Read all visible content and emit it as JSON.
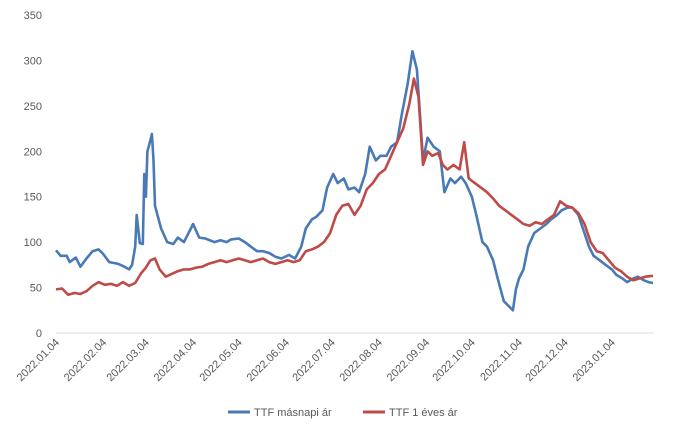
{
  "chart_data": {
    "type": "line",
    "title": "",
    "xlabel": "",
    "ylabel": "",
    "ylim": [
      0,
      350
    ],
    "yticks": [
      0,
      50,
      100,
      150,
      200,
      250,
      300,
      350
    ],
    "x_start": "2022-01-04",
    "x_end": "2023-01-31",
    "xtick_labels": [
      "2022.01.04",
      "2022.02.04",
      "2022.03.04",
      "2022.04.04",
      "2022.05.04",
      "2022.06.04",
      "2022.07.04",
      "2022.08.04",
      "2022.09.04",
      "2022.10.04",
      "2022.11.04",
      "2022.12.04",
      "2023.01.04"
    ],
    "grid": false,
    "legend_position": "bottom",
    "series": [
      {
        "name": "TTF másnapi ár",
        "color": "#4a7ab5",
        "points": [
          [
            "2022-01-04",
            91
          ],
          [
            "2022-01-07",
            85
          ],
          [
            "2022-01-11",
            85
          ],
          [
            "2022-01-13",
            78
          ],
          [
            "2022-01-17",
            83
          ],
          [
            "2022-01-20",
            73
          ],
          [
            "2022-01-24",
            82
          ],
          [
            "2022-01-28",
            90
          ],
          [
            "2022-02-01",
            92
          ],
          [
            "2022-02-04",
            87
          ],
          [
            "2022-02-08",
            78
          ],
          [
            "2022-02-14",
            76
          ],
          [
            "2022-02-18",
            73
          ],
          [
            "2022-02-21",
            70
          ],
          [
            "2022-02-23",
            75
          ],
          [
            "2022-02-25",
            95
          ],
          [
            "2022-02-26",
            130
          ],
          [
            "2022-02-28",
            99
          ],
          [
            "2022-03-02",
            98
          ],
          [
            "2022-03-03",
            175
          ],
          [
            "2022-03-04",
            150
          ],
          [
            "2022-03-05",
            200
          ],
          [
            "2022-03-07",
            212
          ],
          [
            "2022-03-08",
            219
          ],
          [
            "2022-03-09",
            190
          ],
          [
            "2022-03-10",
            140
          ],
          [
            "2022-03-14",
            115
          ],
          [
            "2022-03-18",
            100
          ],
          [
            "2022-03-22",
            98
          ],
          [
            "2022-03-25",
            105
          ],
          [
            "2022-03-29",
            100
          ],
          [
            "2022-04-01",
            110
          ],
          [
            "2022-04-04",
            120
          ],
          [
            "2022-04-08",
            105
          ],
          [
            "2022-04-12",
            104
          ],
          [
            "2022-04-18",
            100
          ],
          [
            "2022-04-22",
            102
          ],
          [
            "2022-04-26",
            100
          ],
          [
            "2022-04-29",
            103
          ],
          [
            "2022-05-04",
            104
          ],
          [
            "2022-05-08",
            100
          ],
          [
            "2022-05-12",
            95
          ],
          [
            "2022-05-16",
            90
          ],
          [
            "2022-05-20",
            90
          ],
          [
            "2022-05-24",
            88
          ],
          [
            "2022-05-28",
            84
          ],
          [
            "2022-06-01",
            82
          ],
          [
            "2022-06-06",
            86
          ],
          [
            "2022-06-10",
            82
          ],
          [
            "2022-06-14",
            95
          ],
          [
            "2022-06-17",
            115
          ],
          [
            "2022-06-21",
            125
          ],
          [
            "2022-06-24",
            128
          ],
          [
            "2022-06-28",
            135
          ],
          [
            "2022-07-01",
            160
          ],
          [
            "2022-07-05",
            175
          ],
          [
            "2022-07-08",
            165
          ],
          [
            "2022-07-12",
            170
          ],
          [
            "2022-07-15",
            158
          ],
          [
            "2022-07-19",
            160
          ],
          [
            "2022-07-22",
            155
          ],
          [
            "2022-07-26",
            175
          ],
          [
            "2022-07-29",
            205
          ],
          [
            "2022-08-02",
            190
          ],
          [
            "2022-08-05",
            195
          ],
          [
            "2022-08-09",
            195
          ],
          [
            "2022-08-12",
            205
          ],
          [
            "2022-08-16",
            210
          ],
          [
            "2022-08-19",
            240
          ],
          [
            "2022-08-23",
            275
          ],
          [
            "2022-08-25",
            298
          ],
          [
            "2022-08-26",
            310
          ],
          [
            "2022-08-29",
            290
          ],
          [
            "2022-08-31",
            240
          ],
          [
            "2022-09-02",
            190
          ],
          [
            "2022-09-05",
            215
          ],
          [
            "2022-09-07",
            210
          ],
          [
            "2022-09-09",
            205
          ],
          [
            "2022-09-13",
            200
          ],
          [
            "2022-09-16",
            155
          ],
          [
            "2022-09-20",
            170
          ],
          [
            "2022-09-23",
            165
          ],
          [
            "2022-09-27",
            172
          ],
          [
            "2022-09-30",
            165
          ],
          [
            "2022-10-04",
            150
          ],
          [
            "2022-10-07",
            130
          ],
          [
            "2022-10-11",
            100
          ],
          [
            "2022-10-14",
            95
          ],
          [
            "2022-10-18",
            80
          ],
          [
            "2022-10-21",
            60
          ],
          [
            "2022-10-25",
            35
          ],
          [
            "2022-10-28",
            30
          ],
          [
            "2022-10-31",
            25
          ],
          [
            "2022-11-02",
            48
          ],
          [
            "2022-11-04",
            60
          ],
          [
            "2022-11-07",
            70
          ],
          [
            "2022-11-10",
            95
          ],
          [
            "2022-11-14",
            110
          ],
          [
            "2022-11-18",
            115
          ],
          [
            "2022-11-22",
            120
          ],
          [
            "2022-11-25",
            125
          ],
          [
            "2022-11-29",
            130
          ],
          [
            "2022-12-02",
            135
          ],
          [
            "2022-12-06",
            138
          ],
          [
            "2022-12-09",
            138
          ],
          [
            "2022-12-13",
            130
          ],
          [
            "2022-12-16",
            115
          ],
          [
            "2022-12-20",
            95
          ],
          [
            "2022-12-23",
            85
          ],
          [
            "2022-12-27",
            80
          ],
          [
            "2022-12-30",
            76
          ],
          [
            "2023-01-04",
            70
          ],
          [
            "2023-01-07",
            64
          ],
          [
            "2023-01-11",
            60
          ],
          [
            "2023-01-14",
            56
          ],
          [
            "2023-01-18",
            60
          ],
          [
            "2023-01-21",
            62
          ],
          [
            "2023-01-25",
            58
          ],
          [
            "2023-01-28",
            56
          ],
          [
            "2023-01-31",
            55
          ]
        ]
      },
      {
        "name": "TTF 1 éves ár",
        "color": "#be4b48",
        "points": [
          [
            "2022-01-04",
            48
          ],
          [
            "2022-01-08",
            49
          ],
          [
            "2022-01-12",
            42
          ],
          [
            "2022-01-16",
            44
          ],
          [
            "2022-01-20",
            43
          ],
          [
            "2022-01-24",
            46
          ],
          [
            "2022-01-28",
            52
          ],
          [
            "2022-02-01",
            56
          ],
          [
            "2022-02-05",
            53
          ],
          [
            "2022-02-09",
            54
          ],
          [
            "2022-02-13",
            52
          ],
          [
            "2022-02-17",
            56
          ],
          [
            "2022-02-21",
            52
          ],
          [
            "2022-02-25",
            55
          ],
          [
            "2022-03-01",
            66
          ],
          [
            "2022-03-04",
            72
          ],
          [
            "2022-03-07",
            80
          ],
          [
            "2022-03-10",
            82
          ],
          [
            "2022-03-13",
            70
          ],
          [
            "2022-03-17",
            62
          ],
          [
            "2022-03-21",
            65
          ],
          [
            "2022-03-25",
            68
          ],
          [
            "2022-03-29",
            70
          ],
          [
            "2022-04-02",
            70
          ],
          [
            "2022-04-06",
            72
          ],
          [
            "2022-04-10",
            73
          ],
          [
            "2022-04-14",
            76
          ],
          [
            "2022-04-18",
            78
          ],
          [
            "2022-04-22",
            80
          ],
          [
            "2022-04-26",
            78
          ],
          [
            "2022-04-30",
            80
          ],
          [
            "2022-05-04",
            82
          ],
          [
            "2022-05-08",
            80
          ],
          [
            "2022-05-12",
            78
          ],
          [
            "2022-05-16",
            80
          ],
          [
            "2022-05-20",
            82
          ],
          [
            "2022-05-24",
            78
          ],
          [
            "2022-05-28",
            76
          ],
          [
            "2022-06-01",
            78
          ],
          [
            "2022-06-05",
            80
          ],
          [
            "2022-06-09",
            78
          ],
          [
            "2022-06-13",
            80
          ],
          [
            "2022-06-17",
            90
          ],
          [
            "2022-06-21",
            92
          ],
          [
            "2022-06-25",
            95
          ],
          [
            "2022-06-29",
            100
          ],
          [
            "2022-07-03",
            110
          ],
          [
            "2022-07-07",
            130
          ],
          [
            "2022-07-11",
            140
          ],
          [
            "2022-07-15",
            142
          ],
          [
            "2022-07-19",
            130
          ],
          [
            "2022-07-23",
            140
          ],
          [
            "2022-07-27",
            158
          ],
          [
            "2022-07-31",
            165
          ],
          [
            "2022-08-04",
            175
          ],
          [
            "2022-08-08",
            180
          ],
          [
            "2022-08-12",
            195
          ],
          [
            "2022-08-16",
            210
          ],
          [
            "2022-08-20",
            225
          ],
          [
            "2022-08-24",
            252
          ],
          [
            "2022-08-27",
            280
          ],
          [
            "2022-08-30",
            260
          ],
          [
            "2022-09-02",
            185
          ],
          [
            "2022-09-05",
            200
          ],
          [
            "2022-09-08",
            195
          ],
          [
            "2022-09-12",
            198
          ],
          [
            "2022-09-15",
            185
          ],
          [
            "2022-09-18",
            180
          ],
          [
            "2022-09-22",
            185
          ],
          [
            "2022-09-26",
            180
          ],
          [
            "2022-09-29",
            210
          ],
          [
            "2022-10-02",
            170
          ],
          [
            "2022-10-06",
            165
          ],
          [
            "2022-10-10",
            160
          ],
          [
            "2022-10-14",
            155
          ],
          [
            "2022-10-18",
            148
          ],
          [
            "2022-10-22",
            140
          ],
          [
            "2022-10-26",
            135
          ],
          [
            "2022-10-30",
            130
          ],
          [
            "2022-11-03",
            125
          ],
          [
            "2022-11-07",
            120
          ],
          [
            "2022-11-11",
            118
          ],
          [
            "2022-11-15",
            122
          ],
          [
            "2022-11-19",
            120
          ],
          [
            "2022-11-23",
            125
          ],
          [
            "2022-11-27",
            130
          ],
          [
            "2022-12-01",
            145
          ],
          [
            "2022-12-05",
            140
          ],
          [
            "2022-12-09",
            138
          ],
          [
            "2022-12-13",
            132
          ],
          [
            "2022-12-17",
            120
          ],
          [
            "2022-12-21",
            100
          ],
          [
            "2022-12-25",
            90
          ],
          [
            "2022-12-29",
            88
          ],
          [
            "2023-01-02",
            80
          ],
          [
            "2023-01-06",
            72
          ],
          [
            "2023-01-10",
            68
          ],
          [
            "2023-01-14",
            62
          ],
          [
            "2023-01-18",
            58
          ],
          [
            "2023-01-22",
            60
          ],
          [
            "2023-01-26",
            62
          ],
          [
            "2023-01-31",
            63
          ]
        ]
      }
    ]
  }
}
